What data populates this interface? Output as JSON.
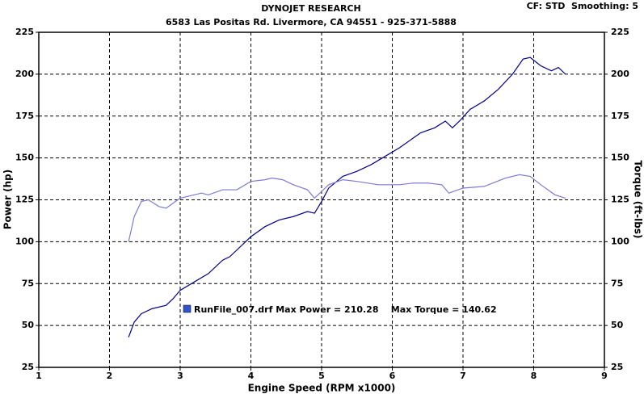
{
  "chart_data": {
    "type": "line",
    "title": "DYNOJET RESEARCH",
    "subtitle": "6583 Las Positas Rd. Livermore, CA 94551 - 925-371-5888",
    "corner_note": "CF: STD  Smoothing: 5",
    "x_label": "Engine Speed (RPM x1000)",
    "y_label": "Power (hp)",
    "y2_label": "Torque (ft-lbs)",
    "annotation": "RunFile_007.drf Max Power = 210.28    Max Torque = 140.62",
    "xlim": [
      1,
      9
    ],
    "xticks": [
      1,
      2,
      3,
      4,
      5,
      6,
      7,
      8,
      9
    ],
    "ylim": [
      25,
      225
    ],
    "yticks": [
      25,
      50,
      75,
      100,
      125,
      150,
      175,
      200,
      225
    ],
    "y2lim": [
      25,
      225
    ],
    "y2ticks": [
      25,
      50,
      75,
      100,
      125,
      150,
      175,
      200,
      225
    ],
    "grid": true,
    "series": [
      {
        "name": "Power",
        "color": "#00008b",
        "x": [
          2.27,
          2.35,
          2.45,
          2.6,
          2.8,
          2.9,
          3.0,
          3.2,
          3.4,
          3.6,
          3.7,
          3.8,
          4.0,
          4.2,
          4.4,
          4.6,
          4.8,
          4.9,
          5.0,
          5.1,
          5.3,
          5.5,
          5.7,
          5.9,
          6.1,
          6.3,
          6.4,
          6.6,
          6.75,
          6.85,
          6.95,
          7.1,
          7.3,
          7.5,
          7.7,
          7.85,
          7.95,
          8.1,
          8.25,
          8.35,
          8.45
        ],
        "values": [
          43,
          52,
          57,
          60,
          62,
          66,
          71,
          76,
          81,
          89,
          91,
          95,
          103,
          109,
          113,
          115,
          118,
          117,
          124,
          132,
          139,
          142,
          146,
          151,
          156,
          162,
          165,
          168,
          172,
          168,
          172,
          179,
          184,
          191,
          200,
          209,
          210,
          205,
          202,
          204,
          200
        ]
      },
      {
        "name": "Torque",
        "color": "#7b7bd6",
        "axis": "y2",
        "x": [
          2.27,
          2.35,
          2.45,
          2.55,
          2.7,
          2.8,
          2.9,
          3.0,
          3.2,
          3.3,
          3.4,
          3.6,
          3.8,
          4.0,
          4.2,
          4.3,
          4.45,
          4.6,
          4.8,
          4.9,
          5.0,
          5.1,
          5.3,
          5.5,
          5.8,
          6.1,
          6.3,
          6.5,
          6.7,
          6.8,
          7.0,
          7.3,
          7.6,
          7.8,
          7.95,
          8.1,
          8.3,
          8.45
        ],
        "values": [
          100,
          115,
          124,
          125,
          121,
          120,
          123,
          126,
          128,
          129,
          128,
          131,
          131,
          136,
          137,
          138,
          137,
          134,
          131,
          126,
          130,
          134,
          137,
          136,
          134,
          134,
          135,
          135,
          134,
          129,
          132,
          133,
          138,
          140,
          139,
          134,
          128,
          126
        ]
      }
    ]
  }
}
